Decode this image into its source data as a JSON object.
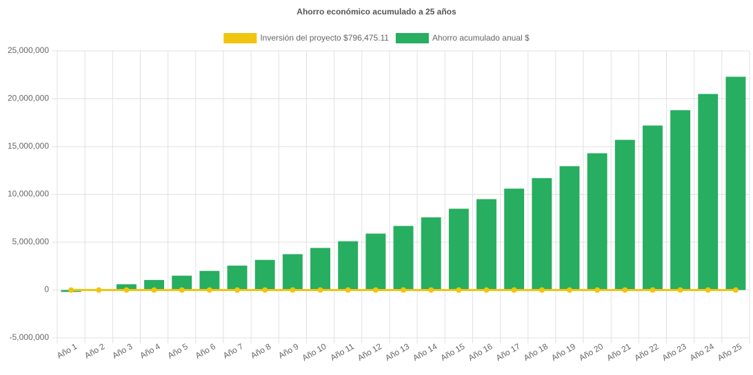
{
  "chart_data": {
    "type": "bar",
    "title": "Ahorro económico acumulado a 25 años",
    "categories": [
      "Año 1",
      "Año 2",
      "Año 3",
      "Año 4",
      "Año 5",
      "Año 6",
      "Año 7",
      "Año 8",
      "Año 9",
      "Año 10",
      "Año 11",
      "Año 12",
      "Año 13",
      "Año 14",
      "Año 15",
      "Año 16",
      "Año 17",
      "Año 18",
      "Año 19",
      "Año 20",
      "Año 21",
      "Año 22",
      "Año 23",
      "Año 24",
      "Año 25"
    ],
    "series": [
      {
        "name": "Inversión del proyecto $796,475.11",
        "type": "line",
        "color": "#f1c40f",
        "values": [
          0,
          0,
          0,
          0,
          0,
          0,
          0,
          0,
          0,
          0,
          0,
          0,
          0,
          0,
          0,
          0,
          0,
          0,
          0,
          0,
          0,
          0,
          0,
          0,
          0
        ]
      },
      {
        "name": "Ahorro acumulado anual $",
        "type": "bar",
        "color": "#27ae60",
        "values": [
          -200000,
          50000,
          600000,
          1050000,
          1500000,
          2000000,
          2550000,
          3150000,
          3750000,
          4400000,
          5100000,
          5900000,
          6700000,
          7600000,
          8500000,
          9500000,
          10600000,
          11700000,
          12950000,
          14300000,
          15700000,
          17200000,
          18800000,
          20500000,
          22300000
        ]
      }
    ],
    "ylim": [
      -5000000,
      25000000
    ],
    "yticks": [
      {
        "value": -5000000,
        "label": "-5,000,000"
      },
      0,
      {
        "value": 5000000,
        "label": "5,000,000"
      },
      {
        "value": 10000000,
        "label": "10,000,000"
      },
      {
        "value": 15000000,
        "label": "15,000,000"
      },
      {
        "value": 20000000,
        "label": "20,000,000"
      },
      {
        "value": 25000000,
        "label": "25,000,000"
      }
    ],
    "grid": true,
    "legend": "top"
  }
}
